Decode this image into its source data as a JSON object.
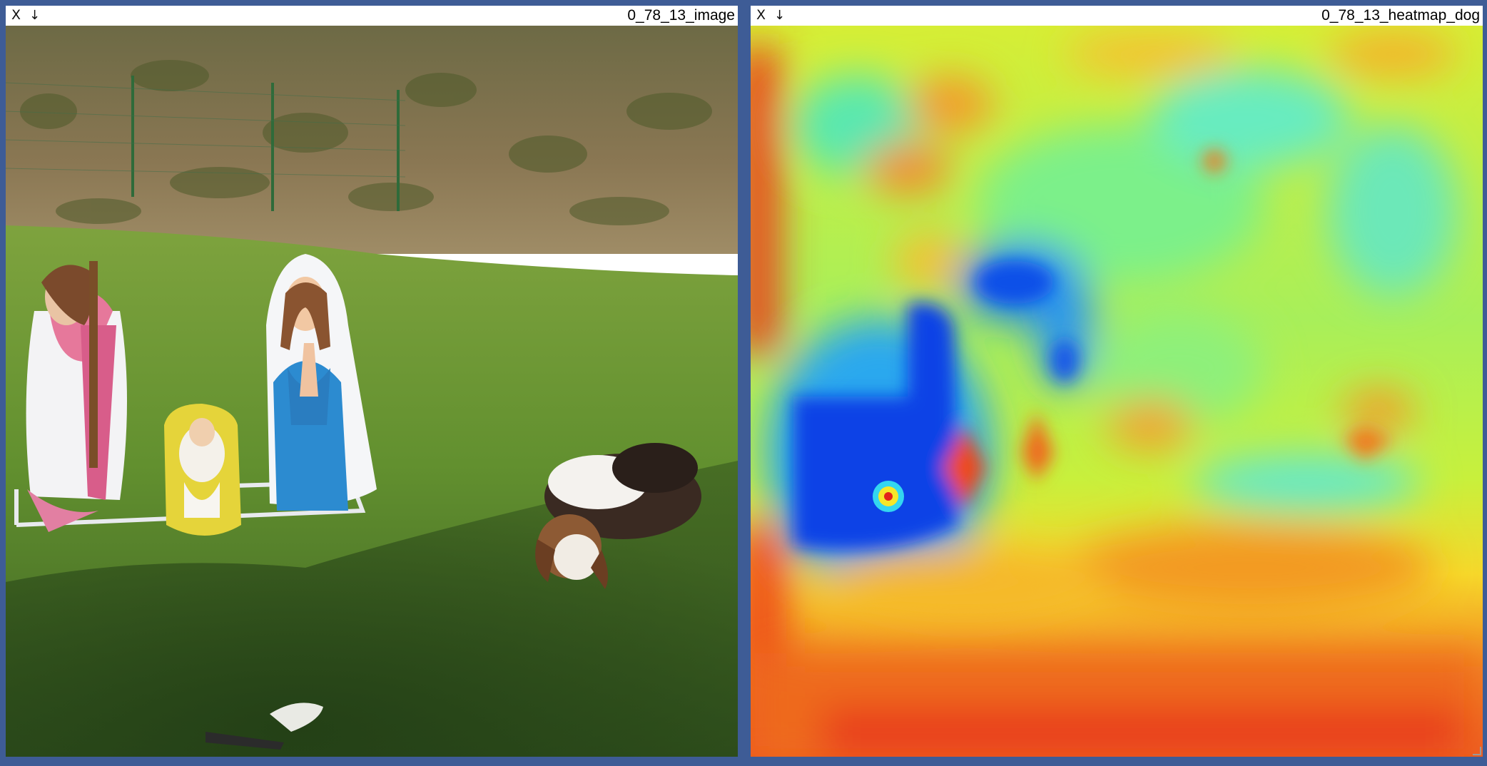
{
  "panels": [
    {
      "title": "0_78_13_image",
      "close_icon": "X",
      "download_icon": "↓"
    },
    {
      "title": "0_78_13_heatmap_dog",
      "close_icon": "X",
      "download_icon": "↓"
    }
  ],
  "colors": {
    "background": "#3e5c96",
    "grass": "#4f7a2e",
    "hill": "#7b6c48",
    "heatmap_high": "#e2231a",
    "heatmap_mid": "#f5f02a",
    "heatmap_low": "#0a2ee0"
  },
  "icons": [
    "close-icon",
    "download-icon",
    "resize-icon"
  ]
}
